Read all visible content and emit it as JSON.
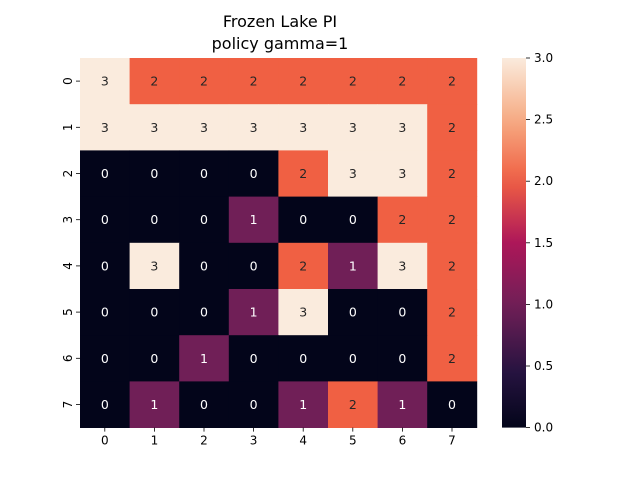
{
  "chart_data": {
    "type": "heatmap",
    "title_lines": [
      "Frozen Lake PI",
      "policy gamma=1"
    ],
    "xlabel": "",
    "ylabel": "",
    "x_ticks": [
      "0",
      "1",
      "2",
      "3",
      "4",
      "5",
      "6",
      "7"
    ],
    "y_ticks": [
      "0",
      "1",
      "2",
      "3",
      "4",
      "5",
      "6",
      "7"
    ],
    "values": [
      [
        3,
        2,
        2,
        2,
        2,
        2,
        2,
        2
      ],
      [
        3,
        3,
        3,
        3,
        3,
        3,
        3,
        2
      ],
      [
        0,
        0,
        0,
        0,
        2,
        3,
        3,
        2
      ],
      [
        0,
        0,
        0,
        1,
        0,
        0,
        2,
        2
      ],
      [
        0,
        3,
        0,
        0,
        2,
        1,
        3,
        2
      ],
      [
        0,
        0,
        0,
        1,
        3,
        0,
        0,
        2
      ],
      [
        0,
        0,
        1,
        0,
        0,
        0,
        0,
        2
      ],
      [
        0,
        1,
        0,
        0,
        1,
        2,
        1,
        0
      ]
    ],
    "annotations": true,
    "vmin": 0,
    "vmax": 3,
    "colormap": "rocket",
    "colorbar_ticks": [
      "0.0",
      "0.5",
      "1.0",
      "1.5",
      "2.0",
      "2.5",
      "3.0"
    ],
    "colors": {
      "0": "#03051a",
      "1": "#701f57",
      "2": "#f06043",
      "3": "#faebdd"
    }
  }
}
